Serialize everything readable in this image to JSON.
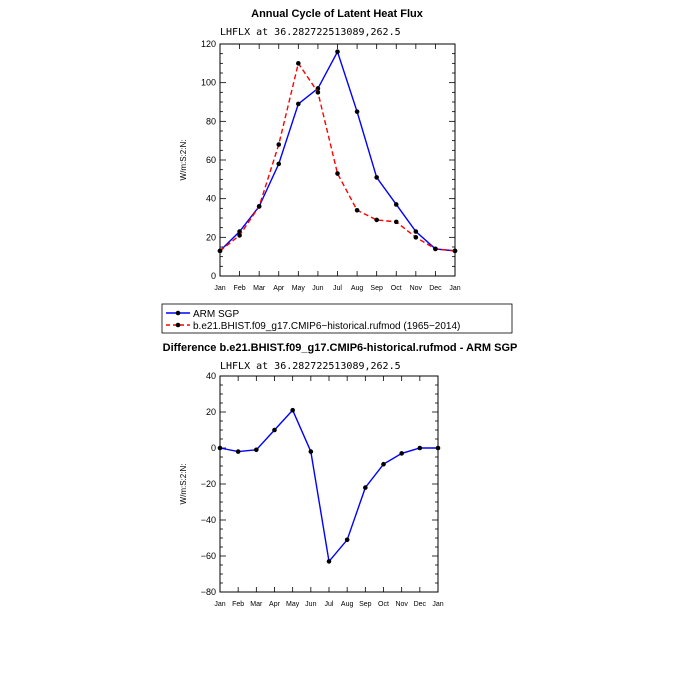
{
  "chart_data": [
    {
      "type": "line",
      "title": "Annual Cycle of Latent Heat Flux",
      "subtitle": "LHFLX  at  36.282722513089,262.5",
      "ylabel": "W/m:S:2:N:",
      "xlabel": "",
      "categories": [
        "Jan",
        "Feb",
        "Mar",
        "Apr",
        "May",
        "Jun",
        "Jul",
        "Aug",
        "Sep",
        "Oct",
        "Nov",
        "Dec",
        "Jan"
      ],
      "ylim": [
        0,
        120
      ],
      "yticks": [
        0,
        20,
        40,
        60,
        80,
        100,
        120
      ],
      "series": [
        {
          "name": "ARM SGP",
          "color": "#0000ff",
          "dash": "solid",
          "values": [
            13,
            23,
            36,
            58,
            89,
            97,
            116,
            85,
            51,
            37,
            23,
            14,
            13
          ]
        },
        {
          "name": "b.e21.BHIST.f09_g17.CMIP6-historical.rufmod (1965-2014)",
          "color": "#ff0000",
          "dash": "dashed",
          "values": [
            13,
            21,
            36,
            68,
            110,
            95,
            53,
            34,
            29,
            28,
            20,
            14,
            13
          ]
        }
      ]
    },
    {
      "type": "line",
      "title": "Difference b.e21.BHIST.f09_g17.CMIP6-historical.rufmod - ARM SGP",
      "subtitle": "LHFLX  at  36.282722513089,262.5",
      "ylabel": "W/m:S:2:N:",
      "xlabel": "",
      "categories": [
        "Jan",
        "Feb",
        "Mar",
        "Apr",
        "May",
        "Jun",
        "Jul",
        "Aug",
        "Sep",
        "Oct",
        "Nov",
        "Dec",
        "Jan"
      ],
      "ylim": [
        -80,
        40
      ],
      "yticks": [
        -80,
        -60,
        -40,
        -20,
        0,
        20,
        40
      ],
      "series": [
        {
          "name": "Difference",
          "color": "#0000ff",
          "dash": "solid",
          "values": [
            0,
            -2,
            -1,
            10,
            21,
            -2,
            -63,
            -51,
            -22,
            -9,
            -3,
            0,
            0
          ]
        }
      ]
    }
  ],
  "legend": {
    "entries": [
      {
        "label": "ARM SGP",
        "color": "#0000ff",
        "dash": "solid"
      },
      {
        "label": "b.e21.BHIST.f09_g17.CMIP6−historical.rufmod (1965−2014)",
        "color": "#ff0000",
        "dash": "dashed"
      }
    ]
  }
}
